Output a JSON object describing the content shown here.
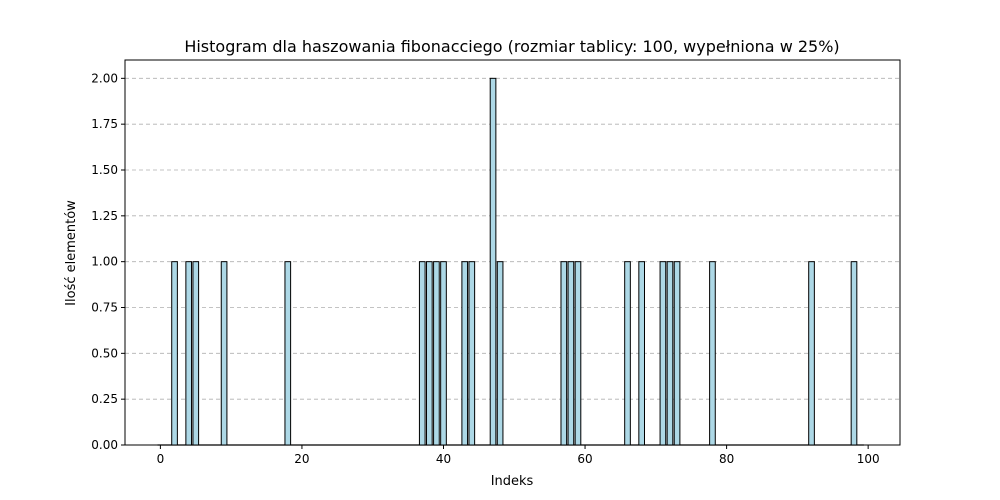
{
  "chart_data": {
    "type": "bar",
    "title": "Histogram dla haszowania fibonacciego (rozmiar tablicy: 100, wypełniona w 25%)",
    "xlabel": "Indeks",
    "ylabel": "Ilość elementów",
    "xlim": [
      -5,
      104.5
    ],
    "ylim": [
      0,
      2.1
    ],
    "xticks": [
      0,
      20,
      40,
      60,
      80,
      100
    ],
    "yticks": [
      0.0,
      0.25,
      0.5,
      0.75,
      1.0,
      1.25,
      1.5,
      1.75,
      2.0
    ],
    "grid": "y",
    "bar_color": "#add8e6",
    "edge_color": "#000000",
    "bars": [
      {
        "x": 2,
        "count": 1
      },
      {
        "x": 4,
        "count": 1
      },
      {
        "x": 5,
        "count": 1
      },
      {
        "x": 9,
        "count": 1
      },
      {
        "x": 18,
        "count": 1
      },
      {
        "x": 37,
        "count": 1
      },
      {
        "x": 38,
        "count": 1
      },
      {
        "x": 39,
        "count": 1
      },
      {
        "x": 40,
        "count": 1
      },
      {
        "x": 43,
        "count": 1
      },
      {
        "x": 44,
        "count": 1
      },
      {
        "x": 47,
        "count": 2
      },
      {
        "x": 48,
        "count": 1
      },
      {
        "x": 57,
        "count": 1
      },
      {
        "x": 58,
        "count": 1
      },
      {
        "x": 59,
        "count": 1
      },
      {
        "x": 66,
        "count": 1
      },
      {
        "x": 68,
        "count": 1
      },
      {
        "x": 71,
        "count": 1
      },
      {
        "x": 72,
        "count": 1
      },
      {
        "x": 73,
        "count": 1
      },
      {
        "x": 78,
        "count": 1
      },
      {
        "x": 92,
        "count": 1
      },
      {
        "x": 98,
        "count": 1
      }
    ]
  }
}
